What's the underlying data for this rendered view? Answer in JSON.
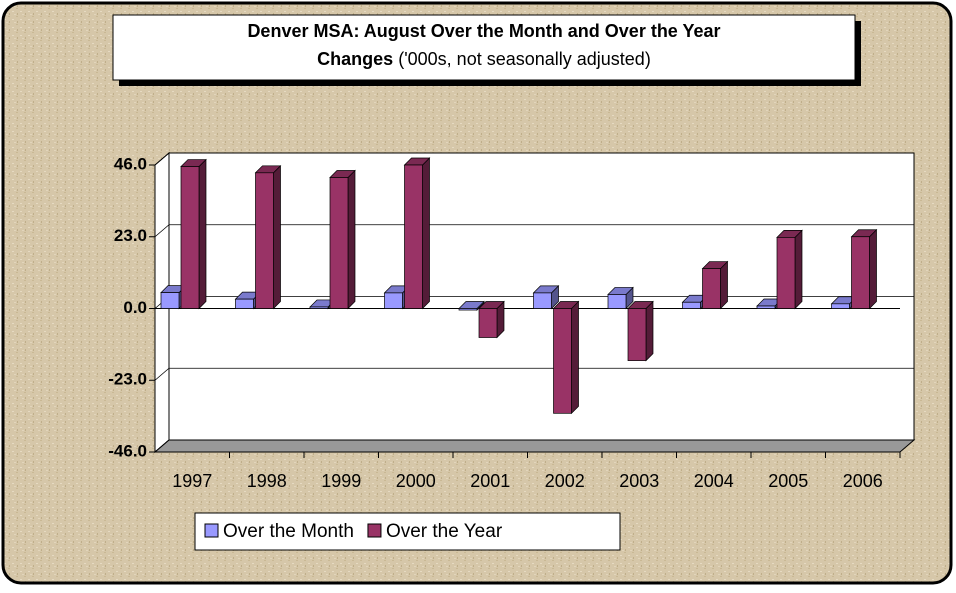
{
  "chart_data": {
    "type": "bar3d",
    "title": [
      "Denver MSA: August Over the Month and Over the Year",
      "Changes"
    ],
    "subtitle": "('000s, not seasonally adjusted)",
    "categories": [
      "1997",
      "1998",
      "1999",
      "2000",
      "2001",
      "2002",
      "2003",
      "2004",
      "2005",
      "2006"
    ],
    "series": [
      {
        "name": "Over the Month",
        "color": "#9999ff",
        "values": [
          5.1,
          3.0,
          0.5,
          5.0,
          -0.5,
          5.0,
          4.5,
          2.0,
          0.8,
          1.5
        ]
      },
      {
        "name": "Over the Year",
        "color": "#993366",
        "values": [
          45.5,
          43.5,
          42.0,
          46.0,
          -9.3,
          -33.6,
          -16.7,
          12.8,
          22.8,
          23.0
        ]
      }
    ],
    "ylim": [
      -46,
      46
    ],
    "yticks": [
      {
        "value": -46,
        "label": "-46.0"
      },
      {
        "value": -23,
        "label": "-23.0"
      },
      {
        "value": 0,
        "label": "0.0"
      },
      {
        "value": 23,
        "label": "23.0"
      },
      {
        "value": 46,
        "label": "46.0"
      }
    ],
    "grid": true,
    "legend": "bottom"
  }
}
